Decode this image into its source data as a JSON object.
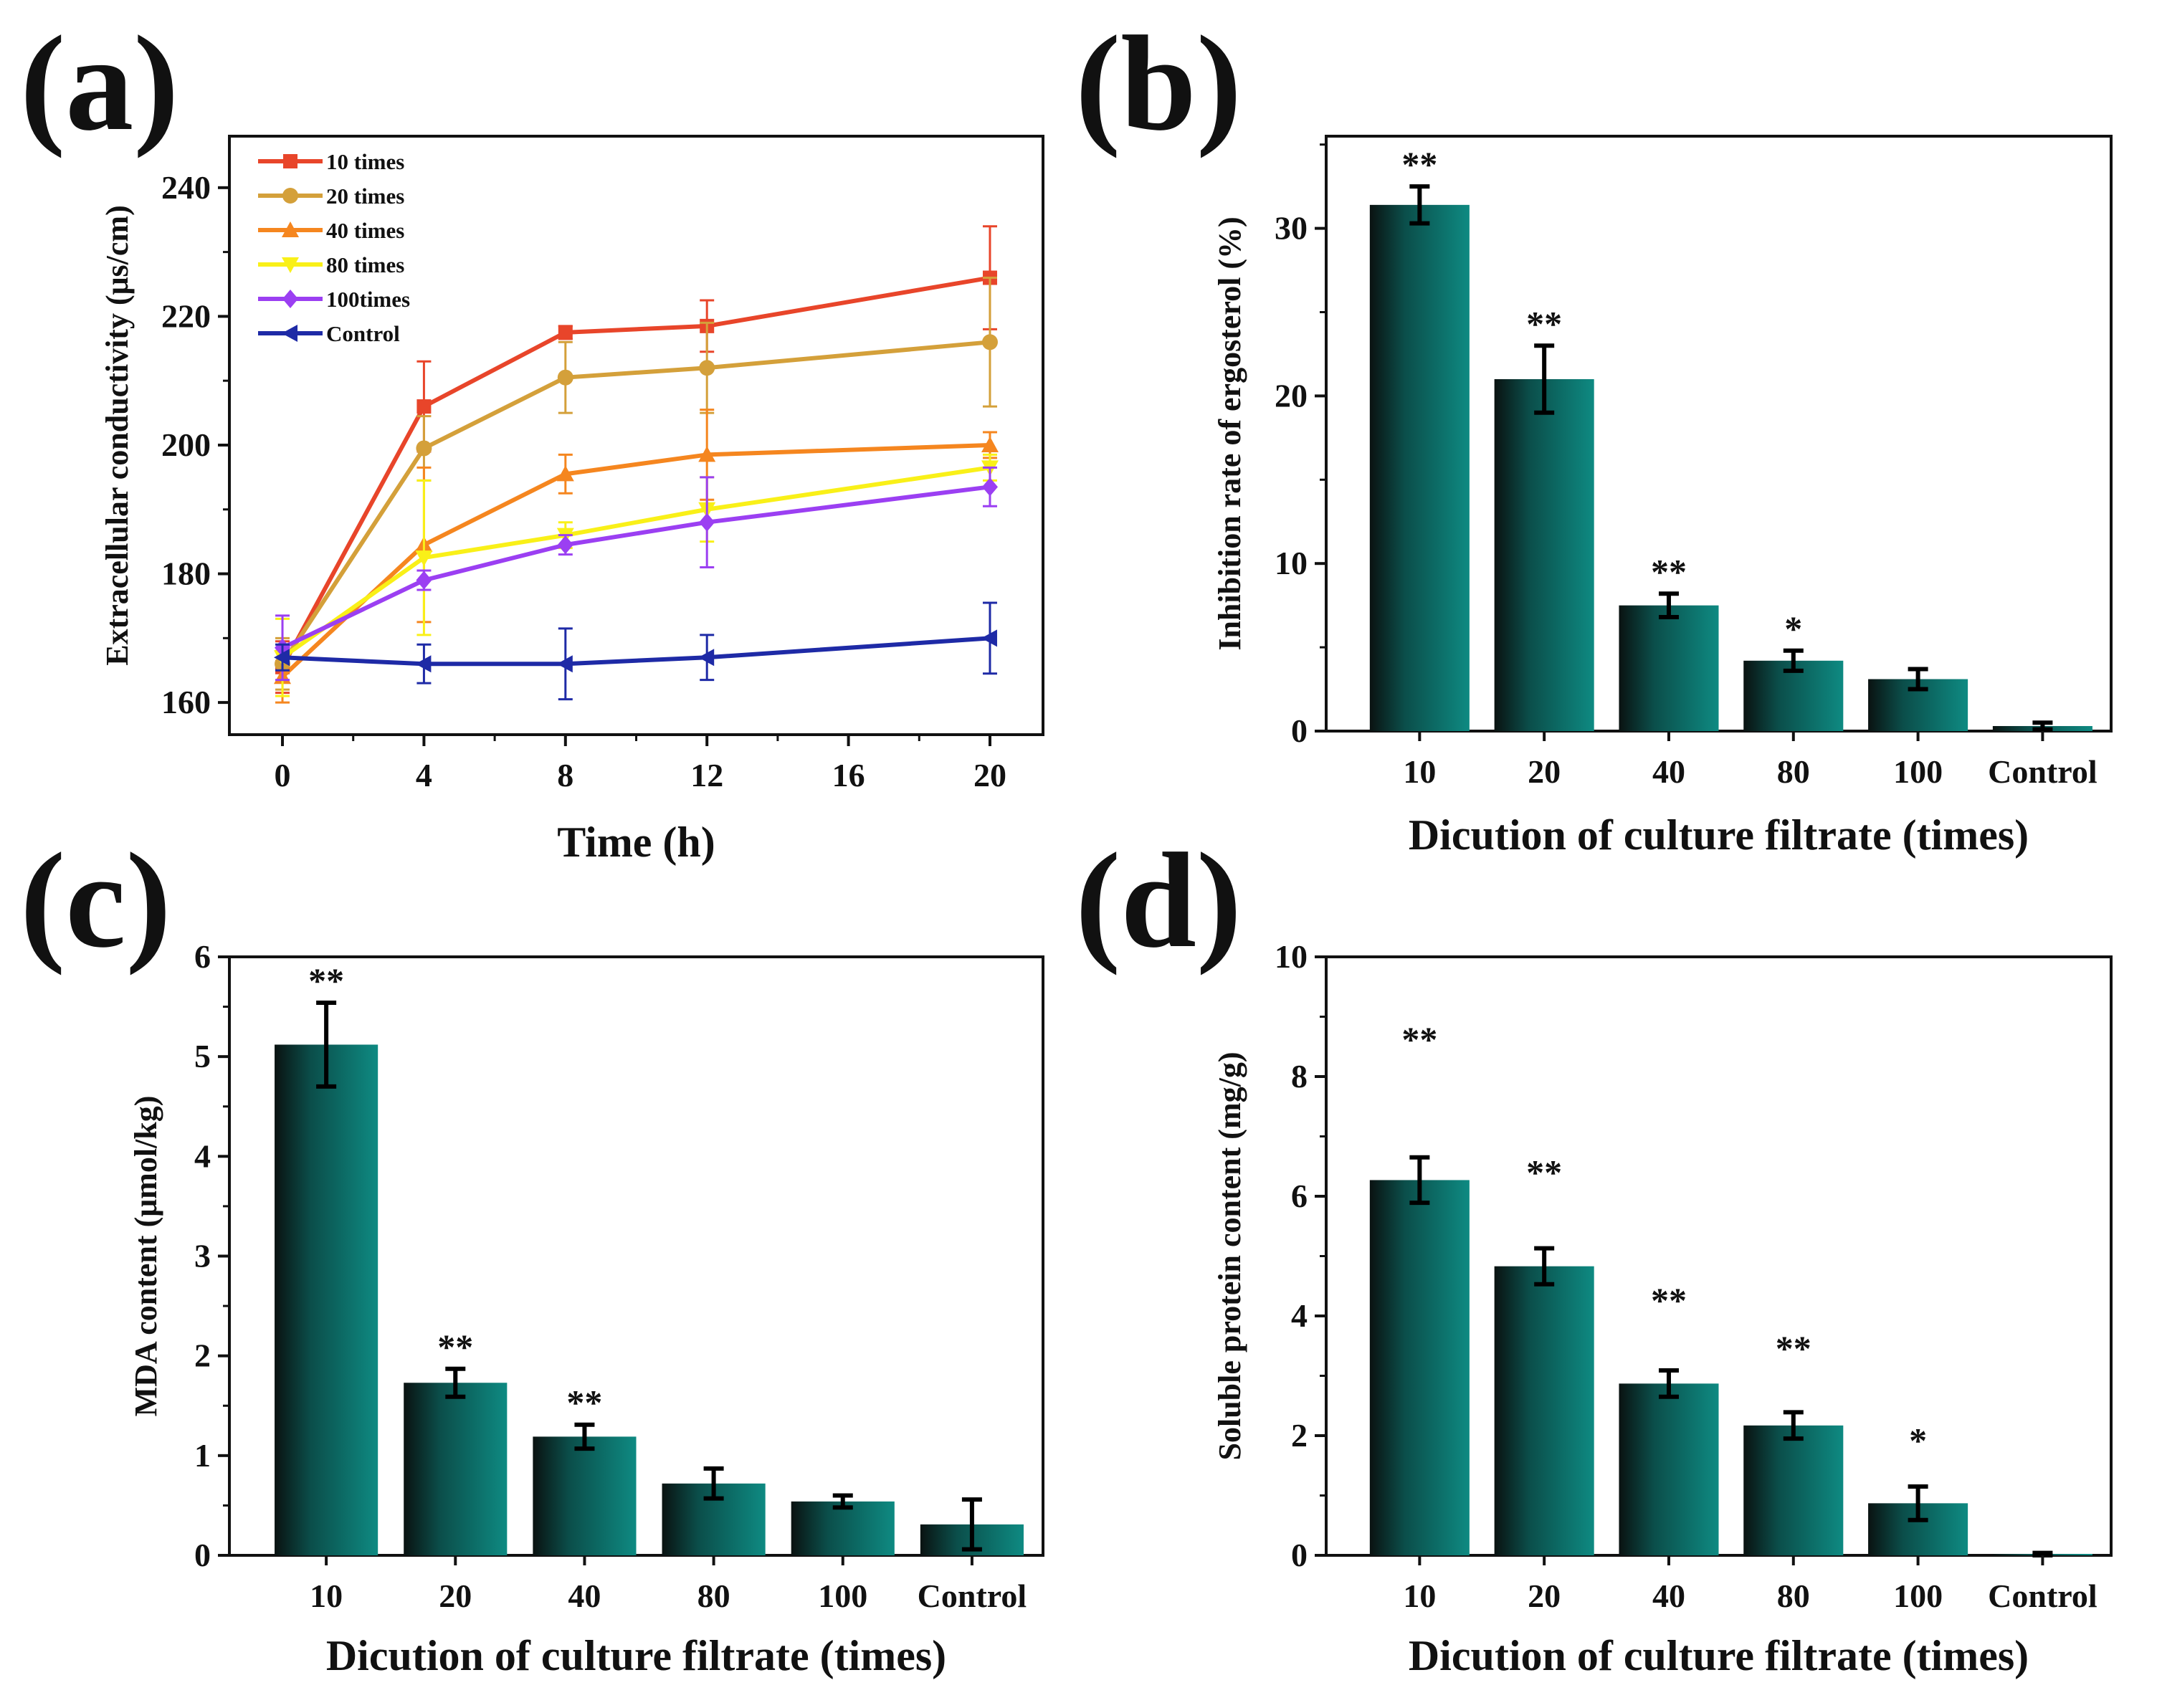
{
  "colors": {
    "bar_light": "#0e8a82",
    "bar_dark": "#0a1211",
    "axis": "#111111"
  },
  "chart_data": [
    {
      "id": "a",
      "panel_label": "(a)",
      "type": "line",
      "xlabel": "Time (h)",
      "ylabel": "Extracellular conductivity (μs/cm)",
      "xlim": [
        -1.5,
        21.5
      ],
      "ylim": [
        155,
        248
      ],
      "xticks": [
        0,
        4,
        8,
        12,
        16,
        20
      ],
      "xtick_labels": [
        "0",
        "4",
        "8",
        "12",
        "16",
        "20"
      ],
      "yticks": [
        160,
        180,
        200,
        220,
        240
      ],
      "ytick_labels": [
        "160",
        "180",
        "200",
        "220",
        "240"
      ],
      "x": [
        0,
        4,
        8,
        12,
        20
      ],
      "legend_position": "top-left",
      "series": [
        {
          "name": "10 times",
          "color": "#e8452a",
          "marker": "square",
          "values": [
            165.5,
            206,
            217.5,
            218.5,
            226
          ],
          "errors": [
            4,
            7,
            1,
            4,
            8
          ]
        },
        {
          "name": "20 times",
          "color": "#d4a03a",
          "marker": "circle",
          "values": [
            166,
            199.5,
            210.5,
            212,
            216
          ],
          "errors": [
            4,
            5,
            5.5,
            7,
            10
          ]
        },
        {
          "name": "40 times",
          "color": "#f5861f",
          "marker": "triangle-up",
          "values": [
            164,
            184.5,
            195.5,
            198.5,
            200
          ],
          "errors": [
            4,
            12,
            3,
            7,
            2
          ]
        },
        {
          "name": "80 times",
          "color": "#f9f018",
          "marker": "triangle-down",
          "values": [
            167,
            182.5,
            186,
            190,
            196.5
          ],
          "errors": [
            6,
            12,
            2,
            5,
            2
          ]
        },
        {
          "name": "100times",
          "color": "#9b3ff2",
          "marker": "diamond",
          "values": [
            168.5,
            179,
            184.5,
            188,
            193.5
          ],
          "errors": [
            5,
            1.5,
            1.5,
            7,
            3
          ]
        },
        {
          "name": "Control",
          "color": "#1e2aa6",
          "marker": "triangle-left",
          "values": [
            167,
            166,
            166,
            167,
            170
          ],
          "errors": [
            2,
            3,
            5.5,
            3.5,
            5.5
          ]
        }
      ]
    },
    {
      "id": "b",
      "panel_label": "(b)",
      "type": "bar",
      "xlabel": "Dicution of culture filtrate (times)",
      "ylabel": "Inhibition rate of ergosterol (%)",
      "ylim": [
        0,
        35.5
      ],
      "yticks": [
        0,
        10,
        20,
        30
      ],
      "ytick_labels": [
        "0",
        "10",
        "20",
        "30"
      ],
      "categories": [
        "10",
        "20",
        "40",
        "80",
        "100",
        "Control"
      ],
      "values": [
        31.4,
        21.0,
        7.5,
        4.2,
        3.1,
        0.3
      ],
      "errors": [
        1.1,
        2.0,
        0.7,
        0.6,
        0.6,
        0.2
      ],
      "significance": [
        "**",
        "**",
        "**",
        "*",
        "",
        ""
      ]
    },
    {
      "id": "c",
      "panel_label": "(c)",
      "type": "bar",
      "xlabel": "Dicution of culture filtrate (times)",
      "ylabel": "MDA content (μmol/kg)",
      "ylim": [
        0,
        6
      ],
      "yticks": [
        0,
        1,
        2,
        3,
        4,
        5,
        6
      ],
      "ytick_labels": [
        "0",
        "1",
        "2",
        "3",
        "4",
        "5",
        "6"
      ],
      "categories": [
        "10",
        "20",
        "40",
        "80",
        "100",
        "Control"
      ],
      "values": [
        5.12,
        1.73,
        1.19,
        0.72,
        0.54,
        0.31
      ],
      "errors": [
        0.42,
        0.14,
        0.12,
        0.15,
        0.06,
        0.25
      ],
      "significance": [
        "**",
        "**",
        "**",
        "",
        "",
        ""
      ]
    },
    {
      "id": "d",
      "panel_label": "(d)",
      "type": "bar",
      "xlabel": "Dicution of culture filtrate (times)",
      "ylabel": "Soluble protein content (mg/g)",
      "ylim": [
        0,
        10
      ],
      "yticks": [
        0,
        2,
        4,
        6,
        8,
        10
      ],
      "ytick_labels": [
        "0",
        "2",
        "4",
        "6",
        "8",
        "10"
      ],
      "categories": [
        "10",
        "20",
        "40",
        "80",
        "100",
        "Control"
      ],
      "values": [
        6.27,
        4.83,
        2.87,
        2.17,
        0.87,
        0.0
      ],
      "errors": [
        0.38,
        0.3,
        0.22,
        0.22,
        0.28,
        0.04
      ],
      "significance": [
        "**",
        "**",
        "**",
        "**",
        "*",
        ""
      ],
      "significance_offsets": [
        1.6,
        0.9,
        0.8,
        0.7,
        0.4,
        0
      ]
    }
  ]
}
